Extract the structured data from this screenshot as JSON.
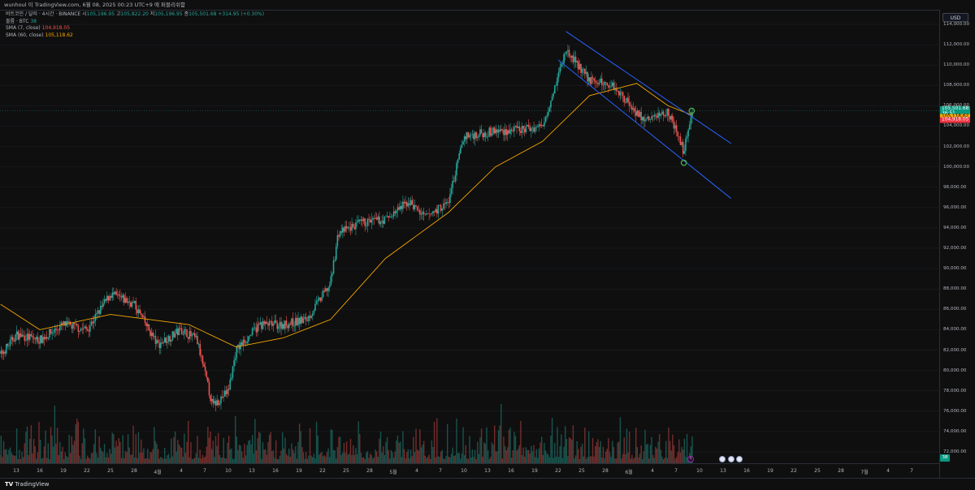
{
  "topbar": {
    "text": "wunhoul 이 TradingView.com, 6월 08, 2025 00:23 UTC+9 에 퍼블리쉬함"
  },
  "legend": {
    "symbol": "비트코인 / 달러 · 4시간 · BINANCE",
    "open_label": "시",
    "open": "105,196.95",
    "high_label": "고",
    "high": "105,822.20",
    "low_label": "저",
    "low": "105,196.95",
    "close_label": "종",
    "close": "105,501.68",
    "change": "+314.95 (+0.30%)",
    "volume_label": "볼륨 · BTC",
    "volume": "38",
    "sma7_label": "SMA (7, close)",
    "sma7": "104,918.05",
    "sma60_label": "SMA (60, close)",
    "sma60": "105,118.62"
  },
  "currency_button": "USD",
  "price_axis": {
    "ticks": [
      "114,000.00",
      "112,000.00",
      "110,000.00",
      "108,000.00",
      "106,000.00",
      "104,000.00",
      "102,000.00",
      "100,000.00",
      "98,000.00",
      "96,000.00",
      "94,000.00",
      "92,000.00",
      "90,000.00",
      "88,000.00",
      "86,000.00",
      "84,000.00",
      "82,000.00",
      "80,000.00",
      "78,000.00",
      "76,000.00",
      "74,000.00",
      "72,000.00"
    ],
    "current_price": "105,501.68",
    "countdown": "36:51",
    "sma60_price": "105,118.62",
    "sma7_price": "104,918.05"
  },
  "time_axis": {
    "ticks": [
      "13",
      "16",
      "19",
      "22",
      "25",
      "28",
      "4월",
      "4",
      "7",
      "10",
      "13",
      "16",
      "19",
      "22",
      "25",
      "28",
      "5월",
      "4",
      "7",
      "10",
      "13",
      "16",
      "19",
      "22",
      "25",
      "28",
      "6월",
      "4",
      "7",
      "10",
      "13",
      "16",
      "19",
      "22",
      "25",
      "28",
      "7월",
      "4",
      "7"
    ]
  },
  "corner_badge": "38",
  "event_div_label": "$",
  "brand": {
    "logo": "TV",
    "name": "TradingView"
  },
  "colors": {
    "up": "#26a69a",
    "down": "#ef5350",
    "sma60": "#f7a600",
    "channel": "#2962ff",
    "marker": "#4caf50"
  },
  "chart_data": {
    "type": "candlestick",
    "interval": "4h",
    "ylim": [
      71000,
      115500
    ],
    "channel_upper": [
      {
        "date": "May 22",
        "price": 113300
      },
      {
        "date": "Jun 12",
        "price": 102300
      }
    ],
    "channel_lower": [
      {
        "date": "May 21",
        "price": 110500
      },
      {
        "date": "Jun 12",
        "price": 96900
      }
    ],
    "markers": [
      {
        "date": "Jun 6",
        "price": 100400
      },
      {
        "date": "Jun 7",
        "price": 105500
      }
    ],
    "close_path": [
      {
        "date": "Mar 11",
        "price": 81500
      },
      {
        "date": "Mar 13",
        "price": 83500
      },
      {
        "date": "Mar 16",
        "price": 83000
      },
      {
        "date": "Mar 19",
        "price": 84500
      },
      {
        "date": "Mar 22",
        "price": 84000
      },
      {
        "date": "Mar 25",
        "price": 87500
      },
      {
        "date": "Mar 28",
        "price": 86500
      },
      {
        "date": "Mar 31",
        "price": 82500
      },
      {
        "date": "Apr 3",
        "price": 84000
      },
      {
        "date": "Apr 5",
        "price": 83000
      },
      {
        "date": "Apr 7",
        "price": 76500
      },
      {
        "date": "Apr 9",
        "price": 78000
      },
      {
        "date": "Apr 10",
        "price": 82000
      },
      {
        "date": "Apr 13",
        "price": 84500
      },
      {
        "date": "Apr 16",
        "price": 84500
      },
      {
        "date": "Apr 19",
        "price": 85000
      },
      {
        "date": "Apr 22",
        "price": 88500
      },
      {
        "date": "Apr 23",
        "price": 93500
      },
      {
        "date": "Apr 26",
        "price": 94500
      },
      {
        "date": "Apr 29",
        "price": 94800
      },
      {
        "date": "May 2",
        "price": 96600
      },
      {
        "date": "May 4",
        "price": 95000
      },
      {
        "date": "May 7",
        "price": 96500
      },
      {
        "date": "May 9",
        "price": 103000
      },
      {
        "date": "May 13",
        "price": 103500
      },
      {
        "date": "May 16",
        "price": 103600
      },
      {
        "date": "May 19",
        "price": 104000
      },
      {
        "date": "May 22",
        "price": 111500
      },
      {
        "date": "May 25",
        "price": 108500
      },
      {
        "date": "May 28",
        "price": 108000
      },
      {
        "date": "Jun 1",
        "price": 104500
      },
      {
        "date": "Jun 4",
        "price": 105500
      },
      {
        "date": "Jun 6",
        "price": 101500
      },
      {
        "date": "Jun 7",
        "price": 105500
      }
    ],
    "sma60_path": [
      {
        "date": "Mar 11",
        "price": 86500
      },
      {
        "date": "Mar 16",
        "price": 84000
      },
      {
        "date": "Mar 25",
        "price": 85500
      },
      {
        "date": "Apr 4",
        "price": 84500
      },
      {
        "date": "Apr 10",
        "price": 82300
      },
      {
        "date": "Apr 16",
        "price": 83200
      },
      {
        "date": "Apr 22",
        "price": 85000
      },
      {
        "date": "Apr 29",
        "price": 91000
      },
      {
        "date": "May 7",
        "price": 95500
      },
      {
        "date": "May 13",
        "price": 100000
      },
      {
        "date": "May 19",
        "price": 102500
      },
      {
        "date": "May 25",
        "price": 107000
      },
      {
        "date": "May 31",
        "price": 108200
      },
      {
        "date": "Jun 4",
        "price": 106000
      },
      {
        "date": "Jun 7",
        "price": 105100
      }
    ]
  }
}
